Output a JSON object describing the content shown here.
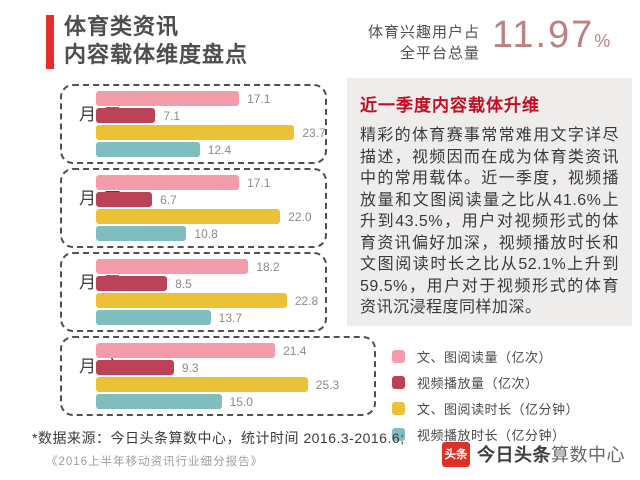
{
  "header": {
    "title_line1": "体育类资讯",
    "title_line2": "内容载体维度盘点",
    "stat": {
      "label_line1": "体育兴趣用户占",
      "label_line2": "全平台总量",
      "value": "11.97",
      "unit": "%"
    }
  },
  "chart_data": {
    "type": "bar",
    "orientation": "horizontal",
    "categories": [
      "三月",
      "四月",
      "五月",
      "六月"
    ],
    "series": [
      {
        "name": "文、图阅读量（亿次）",
        "color": "#f49ca9",
        "values": [
          17.1,
          17.1,
          18.2,
          21.4
        ]
      },
      {
        "name": "视频播放量（亿次）",
        "color": "#bc4258",
        "values": [
          7.1,
          6.7,
          8.5,
          9.3
        ]
      },
      {
        "name": "文、图阅读时长（亿分钟）",
        "color": "#ebc135",
        "values": [
          23.7,
          22.0,
          22.8,
          25.3
        ]
      },
      {
        "name": "视频播放时长（亿分钟）",
        "color": "#7fbdbf",
        "values": [
          12.4,
          10.8,
          13.7,
          15.0
        ]
      }
    ],
    "xlim": [
      0,
      27
    ],
    "value_labels": true,
    "grid": false,
    "legend_position": "right-bottom"
  },
  "info_box": {
    "title": "近一季度内容载体升维",
    "body": "精彩的体育赛事常常难用文字详尽描述，视频因而在成为体育类资讯中的常用载体。近一季度，视频播放量和文图阅读量之比从41.6%上升到43.5%，用户对视频形式的体育资讯偏好加深，视频播放时长和文图阅读时长之比从52.1%上升到59.5%，用户对于视频形式的体育资讯沉浸程度同样加深。"
  },
  "footer": {
    "source": "*数据来源：今日头条算数中心，统计时间 2016.3-2016.6;",
    "report": "《2016上半年移动资讯行业细分报告》",
    "logo_badge": "头条",
    "logo_brand": "今日头条",
    "logo_suffix": "算数中心"
  },
  "colors": {
    "accent_red": "#e2312d",
    "stat_value_pink": "#be8182",
    "info_box_bg": "#efecec",
    "info_box_title_red": "#c30d23",
    "dashed_border": "#4f4f4f",
    "logo_red": "#dc3127"
  }
}
